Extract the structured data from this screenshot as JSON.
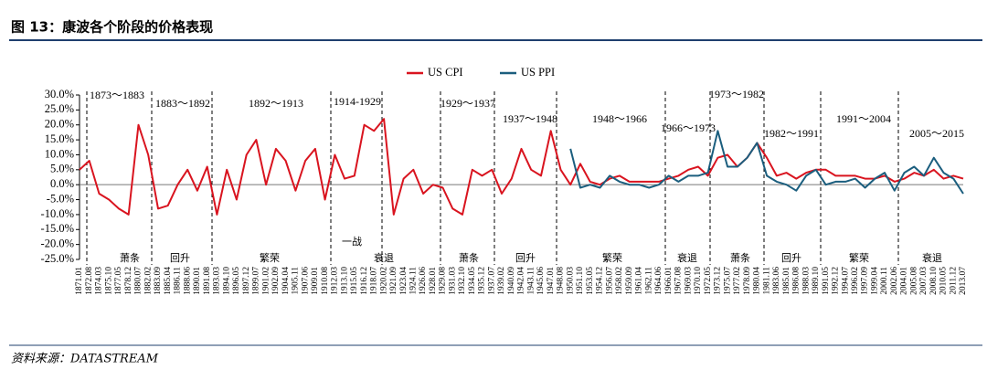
{
  "chart_data": {
    "type": "line",
    "title": "图 13：康波各个阶段的价格表现",
    "source": "资料来源：DATASTREAM",
    "categories": [
      "1871.01",
      "1872.08",
      "1874.03",
      "1875.10",
      "1877.05",
      "1878.12",
      "1880.07",
      "1882.02",
      "1883.09",
      "1885.04",
      "1886.11",
      "1888.06",
      "1890.01",
      "1891.08",
      "1893.03",
      "1894.10",
      "1896.05",
      "1897.12",
      "1899.07",
      "1901.02",
      "1902.09",
      "1904.04",
      "1905.11",
      "1907.06",
      "1909.01",
      "1910.08",
      "1912.03",
      "1913.10",
      "1915.05",
      "1916.12",
      "1918.07",
      "1920.02",
      "1921.09",
      "1923.04",
      "1924.11",
      "1926.06",
      "1928.01",
      "1929.08",
      "1931.03",
      "1932.10",
      "1934.05",
      "1935.12",
      "1937.07",
      "1939.02",
      "1940.09",
      "1942.04",
      "1943.11",
      "1945.06",
      "1947.01",
      "1948.08",
      "1950.03",
      "1951.10",
      "1953.05",
      "1954.12",
      "1956.07",
      "1958.02",
      "1959.09",
      "1961.04",
      "1962.11",
      "1964.06",
      "1966.01",
      "1967.08",
      "1969.03",
      "1970.10",
      "1972.05",
      "1973.12",
      "1975.07",
      "1977.02",
      "1978.09",
      "1980.04",
      "1981.11",
      "1983.06",
      "1985.01",
      "1986.08",
      "1988.03",
      "1989.10",
      "1991.05",
      "1992.12",
      "1994.07",
      "1996.02",
      "1997.09",
      "1999.04",
      "2000.11",
      "2002.06",
      "2004.01",
      "2005.08",
      "2007.03",
      "2008.10",
      "2010.05",
      "2011.12",
      "2013.07"
    ],
    "series": [
      {
        "name": "US CPI",
        "color": "#d9141f",
        "values": [
          5,
          8,
          -3,
          -5,
          -8,
          -10,
          20,
          10,
          -8,
          -7,
          0,
          5,
          -2,
          6,
          -10,
          5,
          -5,
          10,
          15,
          0,
          12,
          8,
          -2,
          8,
          12,
          -5,
          10,
          2,
          3,
          20,
          18,
          22,
          -10,
          2,
          5,
          -3,
          0,
          -1,
          -8,
          -10,
          5,
          3,
          5,
          -3,
          2,
          12,
          5,
          3,
          18,
          5,
          0,
          7,
          1,
          0,
          2,
          3,
          1,
          1,
          1,
          1,
          2,
          3,
          5,
          6,
          3,
          9,
          10,
          6,
          9,
          14,
          9,
          3,
          4,
          2,
          4,
          5,
          5,
          3,
          3,
          3,
          2,
          2,
          3,
          1,
          2,
          4,
          3,
          5,
          2,
          3,
          2
        ]
      },
      {
        "name": "US PPI",
        "color": "#1b5e7e",
        "values": [
          null,
          null,
          null,
          null,
          null,
          null,
          null,
          null,
          null,
          null,
          null,
          null,
          null,
          null,
          null,
          null,
          null,
          null,
          null,
          null,
          null,
          null,
          null,
          null,
          null,
          null,
          null,
          null,
          null,
          null,
          null,
          null,
          null,
          null,
          null,
          null,
          null,
          null,
          null,
          null,
          null,
          null,
          null,
          null,
          null,
          null,
          null,
          null,
          null,
          null,
          12,
          -1,
          0,
          -1,
          3,
          1,
          0,
          0,
          -1,
          0,
          3,
          1,
          3,
          3,
          4,
          18,
          6,
          6,
          9,
          14,
          3,
          1,
          0,
          -2,
          3,
          5,
          0,
          1,
          1,
          2,
          -1,
          2,
          4,
          -2,
          4,
          6,
          3,
          9,
          4,
          2,
          -3
        ]
      }
    ],
    "ylim": [
      -25,
      30
    ],
    "yticks": [
      {
        "value": -25,
        "label": "-25.0%"
      },
      {
        "value": -20,
        "label": "-20.0%"
      },
      {
        "value": -15,
        "label": "-15.0%"
      },
      {
        "value": -10,
        "label": "-10.0%"
      },
      {
        "value": -5,
        "label": "-5.0%"
      },
      {
        "value": 0,
        "label": "0.0%"
      },
      {
        "value": 5,
        "label": "5.0%"
      },
      {
        "value": 10,
        "label": "10.0%"
      },
      {
        "value": 15,
        "label": "15.0%"
      },
      {
        "value": 20,
        "label": "20.0%"
      },
      {
        "value": 25,
        "label": "25.0%"
      },
      {
        "value": 30,
        "label": "30.0%"
      }
    ],
    "legend": "top",
    "periods": [
      "1873～1883",
      "1883～1892",
      "1892～1913",
      "1914-1929",
      "1929～1937",
      "1937～1948",
      "1948～1966",
      "1966～1973",
      "1973～1982",
      "1982～1991",
      "1991～2004",
      "2005～2015"
    ],
    "phases": [
      "萧条",
      "回升",
      "繁荣",
      "一战",
      "衰退",
      "萧条",
      "回升",
      "繁荣",
      "衰退",
      "萧条",
      "回升",
      "繁荣",
      "衰退"
    ]
  }
}
